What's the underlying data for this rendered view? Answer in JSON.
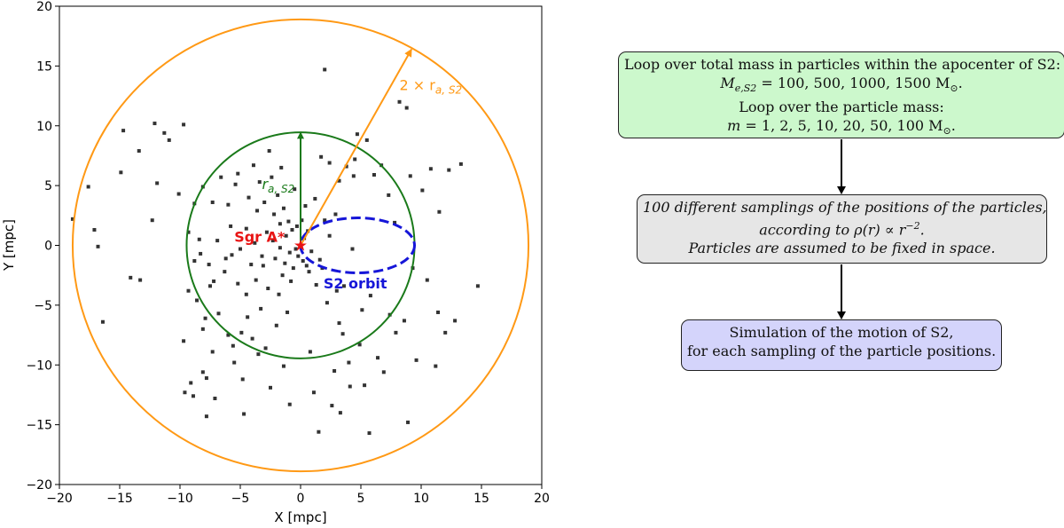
{
  "chart_data": {
    "type": "scatter",
    "xlabel": "X [mpc]",
    "ylabel": "Y [mpc]",
    "xlim": [
      -20,
      20
    ],
    "ylim": [
      -20,
      20
    ],
    "xticks": [
      -20,
      -15,
      -10,
      -5,
      0,
      5,
      10,
      15,
      20
    ],
    "yticks": [
      -20,
      -15,
      -10,
      -5,
      0,
      5,
      10,
      15,
      20
    ],
    "grid": false,
    "circles": [
      {
        "name": "2 × r_a,S2 circle",
        "center": [
          0,
          0
        ],
        "radius": 18.9,
        "color": "#ff9915"
      },
      {
        "name": "r_a,S2 circle",
        "center": [
          0,
          0
        ],
        "radius": 9.45,
        "color": "#1a7a1a"
      }
    ],
    "orbit": {
      "center": [
        4.72,
        0
      ],
      "semi_x": 4.73,
      "semi_y": 2.3,
      "color": "#1616d8",
      "style": "dashed"
    },
    "arrows": [
      {
        "from": [
          0,
          0
        ],
        "to": [
          0,
          9.45
        ],
        "color": "#1a7a1a"
      },
      {
        "from": [
          0,
          0
        ],
        "to": [
          9.2,
          16.4
        ],
        "color": "#ff9915"
      }
    ],
    "annotations": [
      {
        "text": "2 × r",
        "sub": "a, S2",
        "x": 8.2,
        "y": 13,
        "color": "#ff9915"
      },
      {
        "text": "r",
        "sub": "a, S2",
        "x": -3.2,
        "y": 4.7,
        "color": "#1a7a1a"
      },
      {
        "text": "Sgr A*",
        "x": -5.5,
        "y": 0.3,
        "color": "#e81414"
      },
      {
        "text": "S2 orbit",
        "x": 1.9,
        "y": -3.6,
        "color": "#1616d8"
      }
    ],
    "marker": {
      "symbol": "★",
      "x": 0,
      "y": 0,
      "color": "#e81414"
    },
    "points": [
      [
        -18.9,
        2.2
      ],
      [
        -17.6,
        4.9
      ],
      [
        -17.1,
        1.3
      ],
      [
        -16.8,
        -0.1
      ],
      [
        -16.4,
        -6.4
      ],
      [
        -14.7,
        9.6
      ],
      [
        -14.9,
        6.1
      ],
      [
        -14.1,
        -2.7
      ],
      [
        -13.4,
        7.9
      ],
      [
        -13.3,
        -2.9
      ],
      [
        -12.3,
        2.1
      ],
      [
        -12.1,
        10.2
      ],
      [
        -11.9,
        5.2
      ],
      [
        -11.3,
        9.4
      ],
      [
        -10.9,
        8.8
      ],
      [
        -10.1,
        4.3
      ],
      [
        -9.7,
        -8.0
      ],
      [
        -9.7,
        10.1
      ],
      [
        -9.6,
        -12.3
      ],
      [
        -9.3,
        1.1
      ],
      [
        -9.3,
        -3.8
      ],
      [
        -9.1,
        -11.5
      ],
      [
        -8.9,
        -12.6
      ],
      [
        -8.8,
        3.5
      ],
      [
        -8.8,
        -1.3
      ],
      [
        -8.6,
        -4.6
      ],
      [
        -8.4,
        0.5
      ],
      [
        -8.3,
        -0.7
      ],
      [
        -8.1,
        4.9
      ],
      [
        -8.1,
        -7.0
      ],
      [
        -8.1,
        -10.6
      ],
      [
        -7.9,
        -6.1
      ],
      [
        -7.8,
        -11.1
      ],
      [
        -7.8,
        -14.3
      ],
      [
        -7.6,
        -1.6
      ],
      [
        -7.5,
        -3.4
      ],
      [
        -7.3,
        3.6
      ],
      [
        -7.3,
        -8.9
      ],
      [
        -7.2,
        -3.0
      ],
      [
        -7.1,
        -12.8
      ],
      [
        -6.9,
        0.4
      ],
      [
        -6.8,
        -5.7
      ],
      [
        -6.6,
        5.7
      ],
      [
        -6.3,
        -2.2
      ],
      [
        -6.2,
        -1.1
      ],
      [
        -6.0,
        3.4
      ],
      [
        -6.0,
        -7.5
      ],
      [
        -5.8,
        1.6
      ],
      [
        -5.7,
        -0.8
      ],
      [
        -5.6,
        -8.4
      ],
      [
        -5.5,
        -9.8
      ],
      [
        -5.4,
        5.1
      ],
      [
        -5.2,
        -3.2
      ],
      [
        -5.2,
        6.0
      ],
      [
        -5.0,
        -0.3
      ],
      [
        -4.9,
        -7.3
      ],
      [
        -4.8,
        -11.2
      ],
      [
        -4.7,
        -14.1
      ],
      [
        -4.5,
        1.4
      ],
      [
        -4.5,
        -4.1
      ],
      [
        -4.4,
        -6.0
      ],
      [
        -4.3,
        4.0
      ],
      [
        -4.1,
        -1.6
      ],
      [
        -4.0,
        -7.8
      ],
      [
        -3.9,
        6.7
      ],
      [
        -3.8,
        0.2
      ],
      [
        -3.7,
        -2.9
      ],
      [
        -3.6,
        2.9
      ],
      [
        -3.5,
        -9.1
      ],
      [
        -3.4,
        5.3
      ],
      [
        -3.3,
        -5.3
      ],
      [
        -3.2,
        -0.9
      ],
      [
        -3.1,
        -1.7
      ],
      [
        -3.0,
        3.6
      ],
      [
        -2.9,
        -8.6
      ],
      [
        -2.8,
        1.1
      ],
      [
        -2.7,
        -3.6
      ],
      [
        -2.6,
        7.9
      ],
      [
        -2.5,
        -11.9
      ],
      [
        -2.4,
        5.7
      ],
      [
        -2.3,
        0.4
      ],
      [
        -2.2,
        2.6
      ],
      [
        -2.1,
        -1.1
      ],
      [
        -2.0,
        -6.7
      ],
      [
        -1.9,
        4.2
      ],
      [
        -1.8,
        -4.1
      ],
      [
        -1.7,
        1.8
      ],
      [
        -1.7,
        -0.2
      ],
      [
        -1.6,
        6.5
      ],
      [
        -1.5,
        -2.5
      ],
      [
        -1.4,
        3.1
      ],
      [
        -1.4,
        -10.1
      ],
      [
        -1.3,
        -1.5
      ],
      [
        -1.2,
        0.8
      ],
      [
        -1.1,
        -5.6
      ],
      [
        -1.0,
        2.0
      ],
      [
        -0.9,
        -0.6
      ],
      [
        -0.9,
        -13.3
      ],
      [
        -0.8,
        -3.0
      ],
      [
        -0.7,
        1.3
      ],
      [
        -0.6,
        -1.9
      ],
      [
        -0.5,
        4.7
      ],
      [
        -0.4,
        -0.3
      ],
      [
        -0.3,
        1.6
      ],
      [
        -0.2,
        -0.9
      ],
      [
        0.1,
        2.1
      ],
      [
        0.2,
        -1.3
      ],
      [
        0.3,
        0.6
      ],
      [
        0.4,
        3.3
      ],
      [
        0.5,
        -1.7
      ],
      [
        0.6,
        1.2
      ],
      [
        0.7,
        -2.2
      ],
      [
        0.8,
        -8.9
      ],
      [
        0.9,
        -0.5
      ],
      [
        1.1,
        -12.3
      ],
      [
        1.2,
        3.9
      ],
      [
        1.3,
        -3.3
      ],
      [
        1.5,
        -15.6
      ],
      [
        1.6,
        -1.2
      ],
      [
        1.7,
        7.4
      ],
      [
        1.8,
        -1.9
      ],
      [
        2.0,
        2.1
      ],
      [
        2.0,
        14.7
      ],
      [
        2.2,
        -4.8
      ],
      [
        2.4,
        6.9
      ],
      [
        2.4,
        0.8
      ],
      [
        2.6,
        -13.4
      ],
      [
        2.8,
        -10.5
      ],
      [
        2.9,
        2.6
      ],
      [
        3.0,
        -3.8
      ],
      [
        3.2,
        5.4
      ],
      [
        3.2,
        -6.5
      ],
      [
        3.3,
        -14.0
      ],
      [
        3.5,
        -7.4
      ],
      [
        3.6,
        -3.4
      ],
      [
        3.8,
        6.6
      ],
      [
        4.0,
        -9.8
      ],
      [
        4.1,
        -11.8
      ],
      [
        4.3,
        -0.3
      ],
      [
        4.4,
        5.8
      ],
      [
        4.5,
        7.2
      ],
      [
        4.7,
        9.3
      ],
      [
        4.9,
        -8.3
      ],
      [
        5.1,
        -5.4
      ],
      [
        5.3,
        -11.7
      ],
      [
        5.5,
        8.8
      ],
      [
        5.7,
        -15.7
      ],
      [
        5.8,
        -4.2
      ],
      [
        6.1,
        5.9
      ],
      [
        6.4,
        -9.4
      ],
      [
        6.7,
        6.7
      ],
      [
        6.9,
        -10.6
      ],
      [
        7.3,
        4.2
      ],
      [
        7.4,
        -5.8
      ],
      [
        7.8,
        1.9
      ],
      [
        7.9,
        -7.3
      ],
      [
        8.2,
        12.0
      ],
      [
        8.6,
        -6.3
      ],
      [
        8.8,
        11.5
      ],
      [
        8.9,
        -14.8
      ],
      [
        9.1,
        5.8
      ],
      [
        9.3,
        -1.9
      ],
      [
        9.6,
        -9.6
      ],
      [
        10.1,
        4.6
      ],
      [
        10.8,
        6.4
      ],
      [
        11.2,
        -10.1
      ],
      [
        11.4,
        -5.6
      ],
      [
        12.0,
        -7.3
      ],
      [
        12.3,
        6.3
      ],
      [
        12.8,
        -6.3
      ],
      [
        13.3,
        6.8
      ],
      [
        14.7,
        -3.4
      ],
      [
        10.5,
        -2.9
      ],
      [
        11.5,
        2.8
      ]
    ]
  },
  "flowchart": {
    "box1": {
      "line1": "Loop over total mass in particles within the apocenter of S2:",
      "line2_math": "M",
      "line2_sub": "e,S2",
      "line2_rest": " = 100, 500, 1000, 1500 M",
      "line2_end": ".",
      "line3": "Loop over the particle mass:",
      "line4_math": "m",
      "line4_rest": " = 1, 2, 5, 10, 20, 50, 100 M",
      "line4_end": ".",
      "sun_symbol": "⊙"
    },
    "box2": {
      "line1": "100 different samplings of the positions of the particles,",
      "line2_pre": "according to ρ(r) ∝ r",
      "line2_sup": "−2",
      "line2_end": ".",
      "line3": "Particles are assumed to be fixed in space."
    },
    "box3": {
      "line1": "Simulation of the motion of S2,",
      "line2": "for each sampling of the particle positions."
    }
  }
}
